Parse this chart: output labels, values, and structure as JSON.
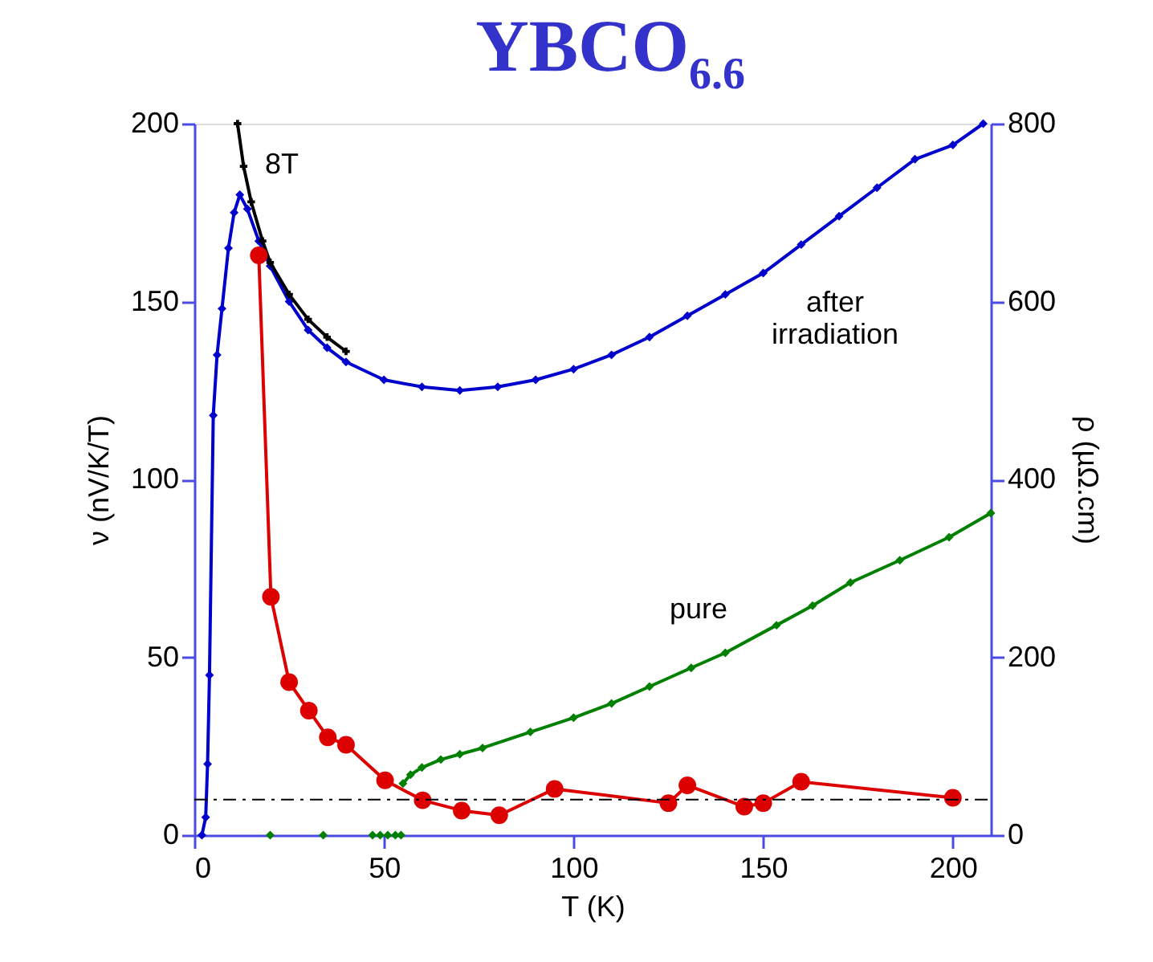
{
  "chart_data": {
    "type": "line",
    "title": "YBCO$_{6.6}$",
    "xlabel": "T (K)",
    "ylabel": "ν (nV/K/T)",
    "y2label": "ρ (µΩ.cm)",
    "xlim": [
      0,
      210
    ],
    "xticks": [
      0,
      50,
      100,
      150,
      200
    ],
    "ylim": [
      0,
      200
    ],
    "yticks": [
      0,
      50,
      100,
      150,
      200
    ],
    "y2lim": [
      0,
      800
    ],
    "y2ticks": [
      0,
      200,
      400,
      600,
      800
    ],
    "grid": false,
    "line_style": "solid",
    "series": [
      {
        "axis": "y2",
        "marker": "diamond",
        "color": "#0000cc",
        "x": [
          2,
          3,
          3.5,
          4,
          5,
          6,
          7.3,
          9,
          10.5,
          12,
          14,
          17,
          20,
          25,
          30,
          35,
          40,
          50,
          60,
          70,
          80,
          90,
          100,
          110,
          120,
          130,
          140,
          150,
          160,
          170,
          180,
          190,
          200,
          208
        ],
        "values": [
          0,
          20,
          80,
          180,
          472,
          540,
          592,
          660,
          700,
          720,
          704,
          668,
          640,
          600,
          568,
          548,
          532,
          512,
          504,
          500,
          504,
          512,
          524,
          540,
          560,
          584,
          608,
          632,
          664,
          696,
          728,
          760,
          776,
          800
        ]
      },
      {
        "axis": "y2",
        "marker": "cross",
        "color": "#000000",
        "x": [
          11.4,
          13,
          15,
          18,
          20,
          25,
          30,
          35,
          40
        ],
        "values": [
          800,
          752,
          712,
          668,
          644,
          608,
          580,
          560,
          544
        ]
      },
      {
        "axis": "y2",
        "marker": "diamond",
        "color": "#008000",
        "x": [
          20,
          27,
          34,
          40,
          47,
          48,
          49,
          50,
          51,
          52,
          53,
          54,
          54.5,
          54.6,
          55,
          57,
          60,
          65,
          70,
          76,
          88.6,
          100,
          110,
          120,
          131,
          140,
          153.5,
          163,
          173,
          186,
          199,
          210
        ],
        "values": [
          0,
          null,
          0,
          null,
          0,
          null,
          0,
          null,
          0,
          null,
          0,
          null,
          0,
          null,
          58,
          68,
          76,
          85,
          91,
          98,
          116,
          132,
          148,
          167,
          188,
          205,
          236,
          258,
          284,
          309,
          335,
          362
        ]
      },
      {
        "marker": "circle",
        "color": "#dd0000",
        "x": [
          17,
          20.2,
          25,
          30.2,
          35.2,
          40,
          50.3,
          60.2,
          70.5,
          80.4,
          95,
          125,
          130,
          145,
          150,
          160,
          200
        ],
        "values": [
          163,
          67,
          43,
          35,
          27.5,
          25.4,
          15.4,
          9.8,
          6.9,
          5.6,
          13,
          9,
          14,
          8,
          9,
          15,
          10.5
        ]
      }
    ],
    "ref_lines": [
      {
        "axis": "y",
        "value": 10,
        "color": "#000000",
        "line_style": "dashed"
      }
    ],
    "annotations": [
      "8T",
      "after\nirradiation",
      "pure"
    ]
  }
}
